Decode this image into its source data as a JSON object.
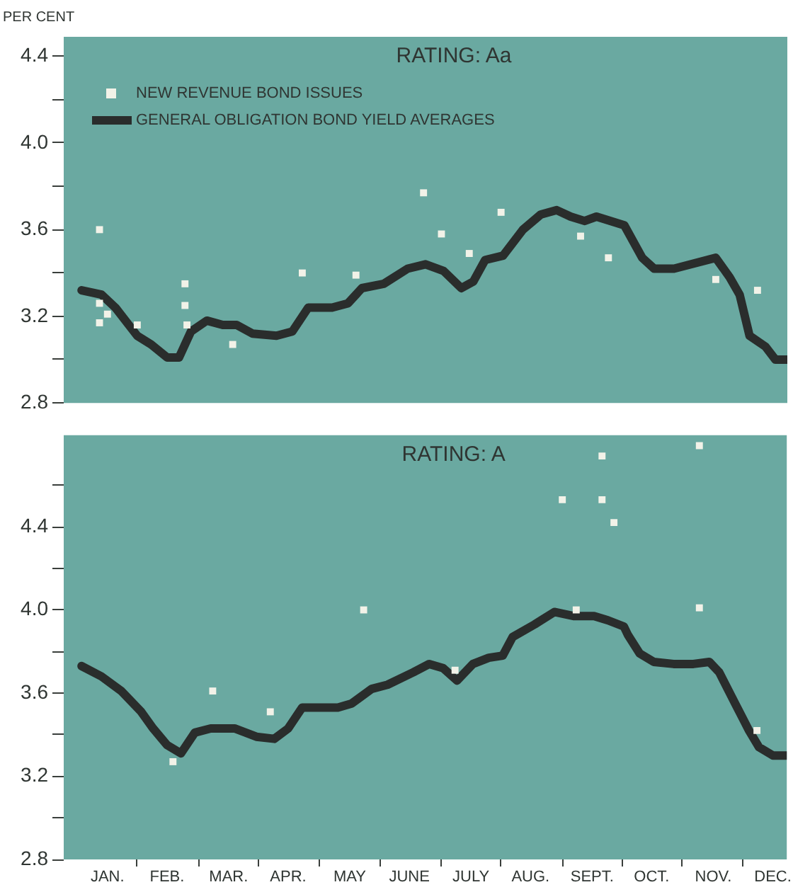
{
  "chart_data": [
    {
      "type": "line",
      "title": "RATING: Aa",
      "ylabel": "PER CENT",
      "legend": "top left",
      "tick_labels": "y",
      "grid": false,
      "xlim": [
        "--01-01",
        "--12-31"
      ],
      "ylim": [
        2.8,
        4.49
      ],
      "yticks": [
        2.8,
        {
          "value": 3.0,
          "label": null
        },
        3.2,
        {
          "value": 3.4,
          "label": null
        },
        3.6,
        {
          "value": 3.8,
          "label": null
        },
        {
          "value": 4.0,
          "label": "4.0"
        },
        {
          "value": 4.2,
          "label": null
        },
        4.4
      ],
      "series": [
        {
          "name": "NEW REVENUE BOND ISSUES",
          "type": "scatter",
          "marker": "square",
          "color": "#f2f2e8",
          "x": [
            "--01-19",
            "--01-19",
            "--01-23",
            "--01-19",
            "--02-07",
            "--03-03",
            "--03-03",
            "--03-04",
            "--03-27",
            "--05-01",
            "--05-28",
            "--07-01",
            "--07-10",
            "--07-24",
            "--08-09",
            "--09-18",
            "--10-02",
            "--11-25",
            "--12-16"
          ],
          "values": [
            3.6,
            3.26,
            3.21,
            3.17,
            3.16,
            3.35,
            3.25,
            3.16,
            3.07,
            3.4,
            3.39,
            3.77,
            3.58,
            3.49,
            3.68,
            3.57,
            3.47,
            3.37,
            3.32
          ]
        },
        {
          "name": "GENERAL OBLIGATION BOND YIELD AVERAGES",
          "type": "line",
          "marker": "none",
          "color": "#2a2d2c",
          "x": [
            "--01-10",
            "--01-20",
            "--01-27",
            "--02-07",
            "--02-14",
            "--02-22",
            "--02-28",
            "--03-06",
            "--03-14",
            "--03-22",
            "--03-29",
            "--04-06",
            "--04-18",
            "--04-26",
            "--05-04",
            "--05-16",
            "--05-24",
            "--05-31",
            "--06-11",
            "--06-23",
            "--07-02",
            "--07-11",
            "--07-20",
            "--07-26",
            "--08-01",
            "--08-10",
            "--08-20",
            "--08-29",
            "--09-06",
            "--09-13",
            "--09-20",
            "--09-26",
            "--10-10",
            "--10-19",
            "--10-25",
            "--11-04",
            "--11-25",
            "--12-02",
            "--12-07",
            "--12-12",
            "--12-20",
            "--12-25",
            "--12-31"
          ],
          "values": [
            3.32,
            3.3,
            3.24,
            3.11,
            3.07,
            3.01,
            3.01,
            3.13,
            3.18,
            3.16,
            3.16,
            3.12,
            3.11,
            3.13,
            3.24,
            3.24,
            3.26,
            3.33,
            3.35,
            3.42,
            3.44,
            3.41,
            3.33,
            3.36,
            3.46,
            3.48,
            3.6,
            3.67,
            3.69,
            3.66,
            3.64,
            3.66,
            3.62,
            3.47,
            3.42,
            3.42,
            3.47,
            3.38,
            3.3,
            3.11,
            3.06,
            3.0,
            3.0
          ]
        }
      ]
    },
    {
      "type": "line",
      "title": "RATING: A",
      "grid": false,
      "xlim": [
        "--01-01",
        "--12-31"
      ],
      "xticks": [
        {
          "value": "--01-23",
          "label": "JAN."
        },
        {
          "value": "--02-07",
          "label": null
        },
        {
          "value": "--02-22",
          "label": "FEB."
        },
        {
          "value": "--03-10",
          "label": null
        },
        {
          "value": "--03-25",
          "label": "MAR."
        },
        {
          "value": "--04-09",
          "label": null
        },
        {
          "value": "--04-24",
          "label": "APR."
        },
        {
          "value": "--05-10",
          "label": null
        },
        {
          "value": "--05-25",
          "label": "MAY"
        },
        {
          "value": "--06-09",
          "label": null
        },
        {
          "value": "--06-24",
          "label": "JUNE"
        },
        {
          "value": "--07-10",
          "label": null
        },
        {
          "value": "--07-25",
          "label": "JULY"
        },
        {
          "value": "--08-09",
          "label": null
        },
        {
          "value": "--08-24",
          "label": "AUG."
        },
        {
          "value": "--09-09",
          "label": null
        },
        {
          "value": "--09-24",
          "label": "SEPT."
        },
        {
          "value": "--10-09",
          "label": null
        },
        {
          "value": "--10-24",
          "label": "OCT."
        },
        {
          "value": "--11-08",
          "label": null
        },
        {
          "value": "--11-24",
          "label": "NOV."
        },
        {
          "value": "--12-09",
          "label": null
        },
        {
          "value": "--12-24",
          "label": "DEC."
        }
      ],
      "ylim": [
        2.8,
        4.84
      ],
      "yticks": [
        2.8,
        {
          "value": 3.0,
          "label": null
        },
        3.2,
        {
          "value": 3.4,
          "label": null
        },
        3.6,
        {
          "value": 3.8,
          "label": null
        },
        {
          "value": 4.0,
          "label": "4.0"
        },
        {
          "value": 4.2,
          "label": null
        },
        4.4,
        {
          "value": 4.6,
          "label": null
        }
      ],
      "series": [
        {
          "type": "scatter",
          "marker": "square",
          "color": "#f2f2e8",
          "x": [
            "--02-25",
            "--03-17",
            "--04-15",
            "--06-01",
            "--07-17",
            "--09-09",
            "--09-16",
            "--09-29",
            "--09-29",
            "--10-05",
            "--11-17",
            "--11-17",
            "--12-16"
          ],
          "values": [
            3.27,
            3.61,
            3.51,
            4.0,
            3.71,
            4.53,
            4.0,
            4.53,
            4.74,
            4.42,
            4.79,
            4.01,
            3.42
          ]
        },
        {
          "type": "line",
          "marker": "none",
          "color": "#2a2d2c",
          "x": [
            "--01-10",
            "--01-20",
            "--01-30",
            "--02-09",
            "--02-15",
            "--02-22",
            "--03-01",
            "--03-08",
            "--03-16",
            "--03-28",
            "--04-08",
            "--04-17",
            "--04-24",
            "--05-01",
            "--05-19",
            "--05-26",
            "--06-05",
            "--06-13",
            "--06-26",
            "--07-04",
            "--07-11",
            "--07-18",
            "--07-26",
            "--08-03",
            "--08-10",
            "--08-15",
            "--08-26",
            "--09-05",
            "--09-15",
            "--09-25",
            "--10-02",
            "--10-10",
            "--10-12",
            "--10-18",
            "--10-25",
            "--11-04",
            "--11-14",
            "--11-22",
            "--11-27",
            "--12-05",
            "--12-12",
            "--12-17",
            "--12-24",
            "--12-31"
          ],
          "values": [
            3.73,
            3.68,
            3.61,
            3.51,
            3.43,
            3.35,
            3.31,
            3.41,
            3.43,
            3.43,
            3.39,
            3.38,
            3.43,
            3.53,
            3.53,
            3.55,
            3.62,
            3.64,
            3.7,
            3.74,
            3.72,
            3.66,
            3.74,
            3.77,
            3.78,
            3.87,
            3.93,
            3.99,
            3.97,
            3.97,
            3.95,
            3.92,
            3.88,
            3.79,
            3.75,
            3.74,
            3.74,
            3.75,
            3.7,
            3.55,
            3.42,
            3.34,
            3.3,
            3.3
          ]
        }
      ]
    }
  ]
}
